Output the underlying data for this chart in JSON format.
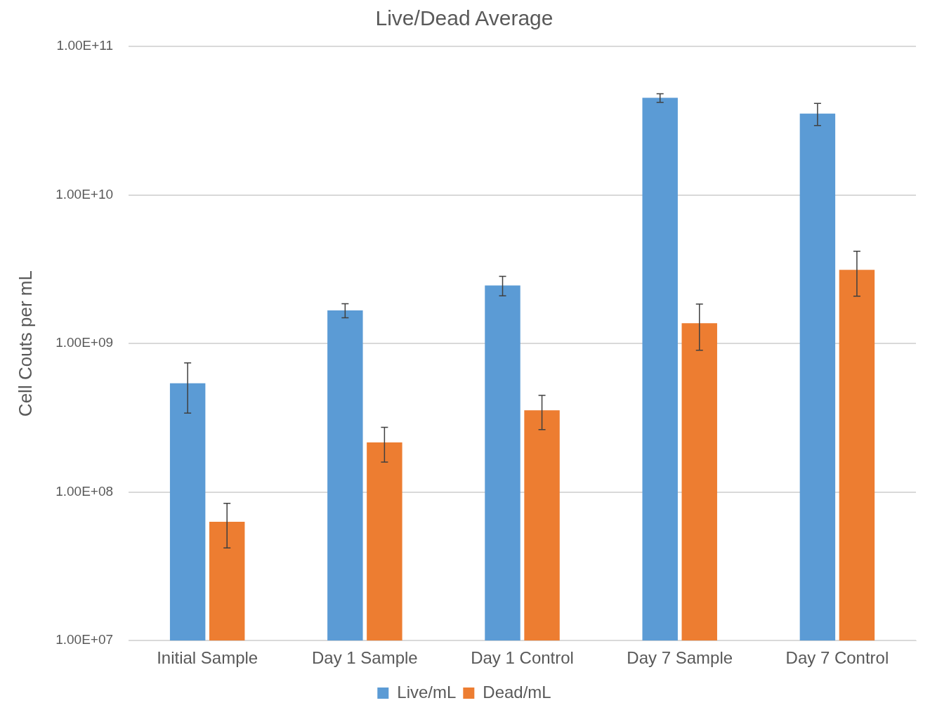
{
  "chart_data": {
    "type": "bar",
    "title": "Live/Dead Average",
    "ylabel": "Cell Couts per mL",
    "categories": [
      "Initial Sample",
      "Day 1 Sample",
      "Day 1 Control",
      "Day 7 Sample",
      "Day 7 Control"
    ],
    "series": [
      {
        "name": "Live/mL",
        "color": "#5b9bd5",
        "values": [
          540000000,
          1670000000,
          2460000000,
          45000000000,
          35300000000
        ],
        "errors": [
          200000000,
          180000000,
          370000000,
          3000000000,
          6000000000
        ]
      },
      {
        "name": "Dead/mL",
        "color": "#ed7d31",
        "values": [
          63000000,
          216000000,
          355000000,
          1370000000,
          3130000000
        ],
        "errors": [
          21000000,
          57000000,
          92000000,
          470000000,
          1050000000
        ]
      }
    ],
    "log": "y",
    "ylim": [
      10000000,
      100000000000
    ],
    "yticks": [
      {
        "value": 10000000,
        "label": "1.00E+07"
      },
      {
        "value": 100000000,
        "label": "1.00E+08"
      },
      {
        "value": 1000000000,
        "label": "1.00E+09"
      },
      {
        "value": 10000000000,
        "label": "1.00E+10"
      },
      {
        "value": 100000000000,
        "label": "1.00E+11"
      }
    ],
    "grid": "y",
    "legend": "bottom"
  }
}
